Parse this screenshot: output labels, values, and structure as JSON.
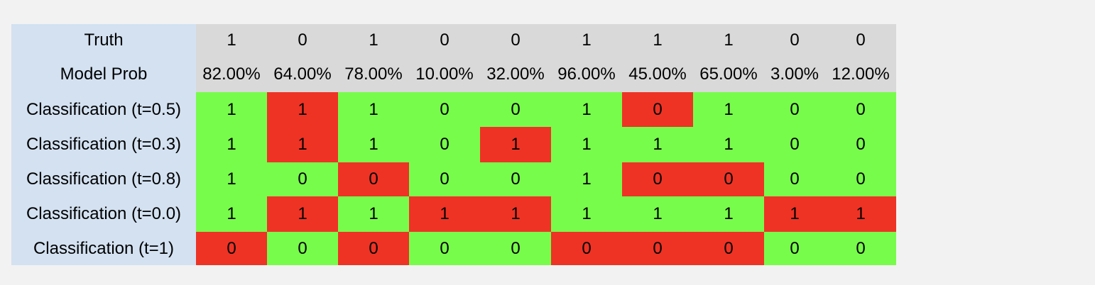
{
  "colors": {
    "label_bg": "#d3e1f1",
    "header_bg": "#d9d9d9",
    "correct_bg": "#78fc4b",
    "incorrect_bg": "#ee3325",
    "page_bg": "#f2f2f2"
  },
  "rows": [
    {
      "label": "Truth",
      "kind": "header",
      "cells": [
        "1",
        "0",
        "1",
        "0",
        "0",
        "1",
        "1",
        "1",
        "0",
        "0"
      ]
    },
    {
      "label": "Model Prob",
      "kind": "header",
      "cells": [
        "82.00%",
        "64.00%",
        "78.00%",
        "10.00%",
        "32.00%",
        "96.00%",
        "45.00%",
        "65.00%",
        "3.00%",
        "12.00%"
      ]
    },
    {
      "label": "Classification (t=0.5)",
      "kind": "classification",
      "cells": [
        "1",
        "1",
        "1",
        "0",
        "0",
        "1",
        "0",
        "1",
        "0",
        "0"
      ],
      "correct": [
        true,
        false,
        true,
        true,
        true,
        true,
        false,
        true,
        true,
        true
      ]
    },
    {
      "label": "Classification (t=0.3)",
      "kind": "classification",
      "cells": [
        "1",
        "1",
        "1",
        "0",
        "1",
        "1",
        "1",
        "1",
        "0",
        "0"
      ],
      "correct": [
        true,
        false,
        true,
        true,
        false,
        true,
        true,
        true,
        true,
        true
      ]
    },
    {
      "label": "Classification (t=0.8)",
      "kind": "classification",
      "cells": [
        "1",
        "0",
        "0",
        "0",
        "0",
        "1",
        "0",
        "0",
        "0",
        "0"
      ],
      "correct": [
        true,
        true,
        false,
        true,
        true,
        true,
        false,
        false,
        true,
        true
      ]
    },
    {
      "label": "Classification (t=0.0)",
      "kind": "classification",
      "cells": [
        "1",
        "1",
        "1",
        "1",
        "1",
        "1",
        "1",
        "1",
        "1",
        "1"
      ],
      "correct": [
        true,
        false,
        true,
        false,
        false,
        true,
        true,
        true,
        false,
        false
      ]
    },
    {
      "label": "Classification (t=1)",
      "kind": "classification",
      "cells": [
        "0",
        "0",
        "0",
        "0",
        "0",
        "0",
        "0",
        "0",
        "0",
        "0"
      ],
      "correct": [
        false,
        true,
        false,
        true,
        true,
        false,
        false,
        false,
        true,
        true
      ]
    }
  ]
}
